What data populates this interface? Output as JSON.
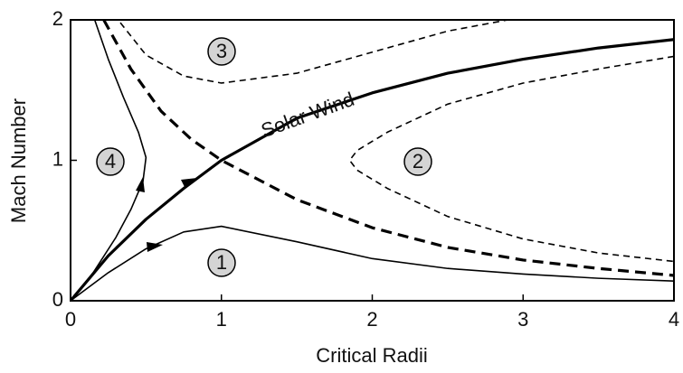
{
  "chart_data": {
    "type": "line",
    "xlabel": "Critical Radii",
    "ylabel": "Mach Number",
    "xlim": [
      0,
      4
    ],
    "ylim": [
      0,
      2
    ],
    "xticks": [
      0,
      1,
      2,
      3,
      4
    ],
    "yticks": [
      0,
      1,
      2
    ],
    "annotations": [
      "Solar Wind",
      "1",
      "2",
      "3",
      "4"
    ],
    "series": [
      {
        "color": "#000",
        "style": "solid",
        "weight": "bold",
        "x": [
          0,
          0.25,
          0.5,
          0.75,
          1,
          1.5,
          2,
          2.5,
          3,
          3.5,
          4
        ],
        "values": [
          0,
          0.32,
          0.58,
          0.8,
          1,
          1.3,
          1.48,
          1.62,
          1.72,
          1.8,
          1.86
        ]
      },
      {
        "color": "#000",
        "style": "dashed",
        "weight": "bold",
        "x": [
          0.22,
          0.4,
          0.6,
          0.8,
          1,
          1.5,
          2,
          2.5,
          3,
          3.5,
          4
        ],
        "values": [
          2,
          1.65,
          1.35,
          1.15,
          1,
          0.72,
          0.52,
          0.38,
          0.29,
          0.23,
          0.18
        ]
      },
      {
        "color": "#000",
        "style": "solid",
        "weight": "normal",
        "x": [
          0,
          0.25,
          0.5,
          0.75,
          1,
          1.5,
          2,
          2.5,
          3,
          3.5,
          4
        ],
        "values": [
          0,
          0.2,
          0.37,
          0.49,
          0.53,
          0.42,
          0.3,
          0.23,
          0.19,
          0.16,
          0.14
        ]
      },
      {
        "color": "#000",
        "style": "solid",
        "weight": "normal",
        "x": [
          0.16,
          0.25,
          0.35,
          0.45,
          0.5,
          0.48,
          0.4,
          0.3,
          0.15,
          0
        ],
        "values": [
          2,
          1.72,
          1.45,
          1.2,
          1.02,
          0.85,
          0.65,
          0.45,
          0.2,
          0
        ]
      },
      {
        "color": "#000",
        "style": "dashed",
        "weight": "normal",
        "x": [
          0.33,
          0.5,
          0.75,
          1,
          1.5,
          2,
          2.5,
          2.9
        ],
        "values": [
          1.98,
          1.75,
          1.6,
          1.55,
          1.62,
          1.77,
          1.92,
          2
        ]
      },
      {
        "color": "#000",
        "style": "dashed",
        "weight": "normal",
        "x": [
          4,
          3.5,
          3,
          2.5,
          2.1,
          1.9,
          1.85,
          1.9,
          2.1,
          2.5,
          3,
          3.5,
          4
        ],
        "values": [
          1.74,
          1.65,
          1.55,
          1.4,
          1.2,
          1.07,
          1,
          0.93,
          0.8,
          0.6,
          0.44,
          0.34,
          0.28
        ]
      }
    ]
  }
}
